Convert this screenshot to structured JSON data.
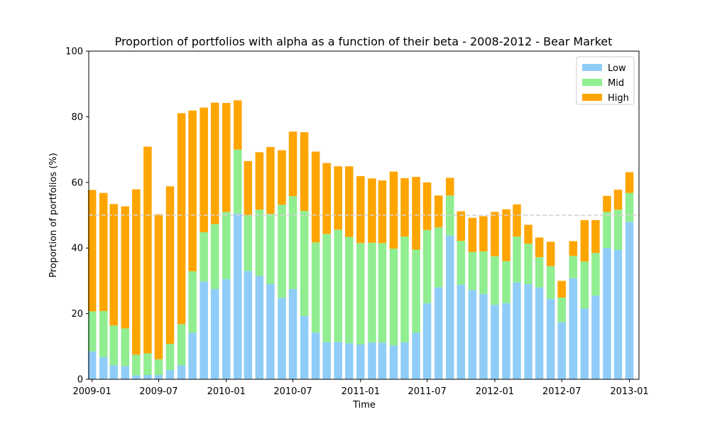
{
  "chart_data": {
    "type": "bar",
    "stacked": true,
    "title": "Proportion of portfolios with alpha as a function of their beta - 2008-2012 - Bear Market",
    "xlabel": "Time",
    "ylabel": "Proportion of portfolios (%)",
    "ylim": [
      0,
      100
    ],
    "yticks": [
      0,
      20,
      40,
      60,
      80,
      100
    ],
    "xlim": [
      "2008-12-23",
      "2013-01-27"
    ],
    "xticks": [
      {
        "date": "2009-01-01",
        "label": "2009-01"
      },
      {
        "date": "2009-07-01",
        "label": "2009-07"
      },
      {
        "date": "2010-01-01",
        "label": "2010-01"
      },
      {
        "date": "2010-07-01",
        "label": "2010-07"
      },
      {
        "date": "2011-01-01",
        "label": "2011-01"
      },
      {
        "date": "2011-07-01",
        "label": "2011-07"
      },
      {
        "date": "2012-01-01",
        "label": "2012-01"
      },
      {
        "date": "2012-07-01",
        "label": "2012-07"
      },
      {
        "date": "2013-01-01",
        "label": "2013-01"
      }
    ],
    "reference_line": {
      "y": 50,
      "style": "dashed",
      "color": "#d3d3d3"
    },
    "legend_position": "top-right",
    "grid": false,
    "x": [
      "2009-01-01",
      "2009-02-01",
      "2009-03-01",
      "2009-04-01",
      "2009-05-01",
      "2009-06-01",
      "2009-07-01",
      "2009-08-01",
      "2009-09-01",
      "2009-10-01",
      "2009-11-01",
      "2009-12-01",
      "2010-01-01",
      "2010-02-01",
      "2010-03-01",
      "2010-04-01",
      "2010-05-01",
      "2010-06-01",
      "2010-07-01",
      "2010-08-01",
      "2010-09-01",
      "2010-10-01",
      "2010-11-01",
      "2010-12-01",
      "2011-01-01",
      "2011-02-01",
      "2011-03-01",
      "2011-04-01",
      "2011-05-01",
      "2011-06-01",
      "2011-07-01",
      "2011-08-01",
      "2011-09-01",
      "2011-10-01",
      "2011-11-01",
      "2011-12-01",
      "2012-01-01",
      "2012-02-01",
      "2012-03-01",
      "2012-04-01",
      "2012-05-01",
      "2012-06-01",
      "2012-07-01",
      "2012-08-01",
      "2012-09-01",
      "2012-10-01",
      "2012-11-01",
      "2012-12-01",
      "2013-01-01"
    ],
    "series": [
      {
        "name": "Low",
        "color": "#8fcdf8",
        "values": [
          8.5,
          6.8,
          4.3,
          4.0,
          1.2,
          1.3,
          1.3,
          2.8,
          4.3,
          14.2,
          29.8,
          27.5,
          30.5,
          50.5,
          33.0,
          31.5,
          29.0,
          24.8,
          27.5,
          19.3,
          14.2,
          11.3,
          11.4,
          11.0,
          10.6,
          11.2,
          11.2,
          10.3,
          11.3,
          14.2,
          23.2,
          28.0,
          43.8,
          28.8,
          27.2,
          26.0,
          22.7,
          23.2,
          29.5,
          29.0,
          28.0,
          24.5,
          17.4,
          30.8,
          21.6,
          25.5,
          40.0,
          39.4,
          48.0
        ]
      },
      {
        "name": "Mid",
        "color": "#90ee90",
        "values": [
          12.2,
          14.0,
          12.1,
          11.5,
          6.3,
          6.6,
          4.8,
          8.0,
          12.5,
          18.7,
          15.0,
          19.8,
          20.5,
          19.5,
          17.0,
          20.2,
          21.4,
          28.4,
          28.3,
          32.0,
          27.5,
          33.0,
          34.2,
          32.4,
          30.9,
          30.4,
          30.3,
          29.5,
          32.2,
          25.3,
          22.3,
          18.3,
          12.2,
          13.4,
          11.6,
          13.0,
          14.8,
          12.8,
          14.0,
          12.3,
          9.2,
          10.0,
          7.5,
          6.8,
          14.3,
          13.0,
          11.0,
          12.3,
          8.8
        ]
      },
      {
        "name": "High",
        "color": "#ffa500",
        "values": [
          37.0,
          36.0,
          37.0,
          37.2,
          50.4,
          63.0,
          44.2,
          48.0,
          64.3,
          49.0,
          38.0,
          37.0,
          33.2,
          15.0,
          16.5,
          17.5,
          20.4,
          16.6,
          19.7,
          24.0,
          27.7,
          21.6,
          19.3,
          21.5,
          20.4,
          19.6,
          19.1,
          23.5,
          17.8,
          22.2,
          14.5,
          9.7,
          5.4,
          9.0,
          10.4,
          10.7,
          13.5,
          15.8,
          9.8,
          5.8,
          6.0,
          7.4,
          5.1,
          4.5,
          12.6,
          10.0,
          4.9,
          6.1,
          6.3
        ]
      }
    ]
  }
}
